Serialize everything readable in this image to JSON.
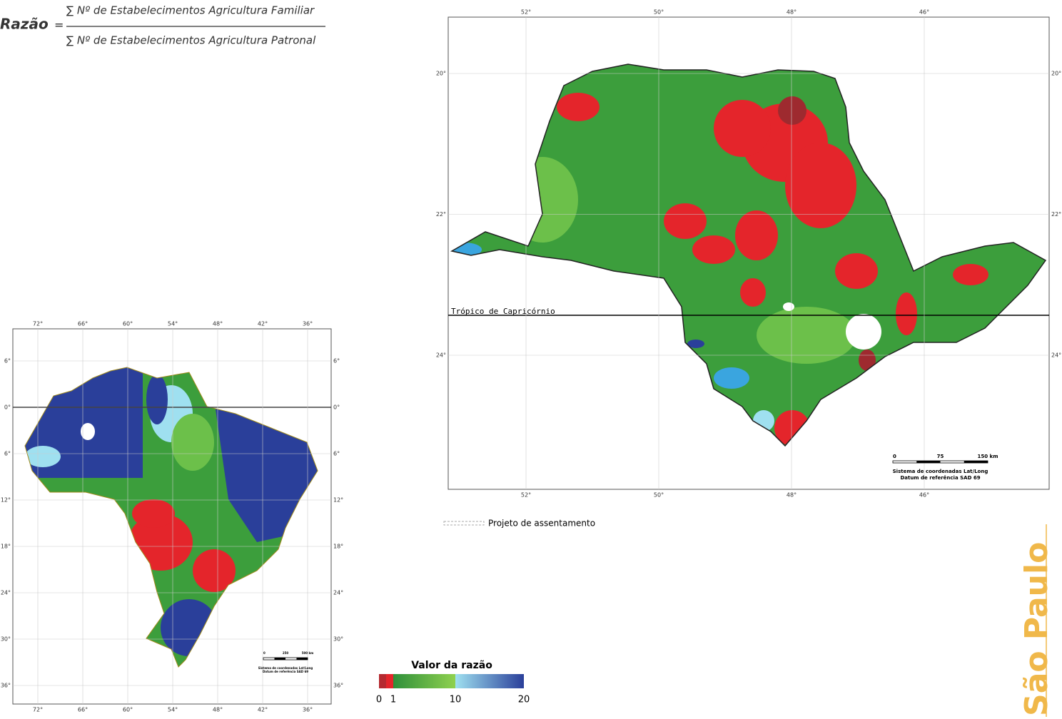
{
  "formula": {
    "lhs": "Razão",
    "equals": "=",
    "numerator": "∑ Nº de Estabelecimentos Agricultura Familiar",
    "denominator": "∑ Nº de Estabelecimentos Agricultura Patronal"
  },
  "sp_map": {
    "lon_labels": [
      "52°",
      "50°",
      "48°",
      "46°"
    ],
    "lat_labels": [
      "20°",
      "22°",
      "24°"
    ],
    "tropic": "Trópico de Capricórnio",
    "scale": {
      "ticks": [
        "0",
        "75",
        "150 km"
      ],
      "crs": "Sistema de coordenadas Lat/Long",
      "datum": "Datum de referência SAD 69"
    },
    "legend": "Projeto de assentamento"
  },
  "brazil_map": {
    "lon_labels": [
      "72°",
      "66°",
      "60°",
      "54°",
      "48°",
      "42°",
      "36°"
    ],
    "lat_labels": [
      "6°",
      "0°",
      "6°",
      "12°",
      "18°",
      "24°",
      "30°",
      "36°"
    ],
    "scale": {
      "ticks": [
        "0",
        "250",
        "500 km"
      ],
      "crs": "Sistema de coordenadas Lat/Long",
      "datum": "Datum de referência SAD 69"
    }
  },
  "colorbar": {
    "title": "Valor da razão",
    "ticks": [
      "0",
      "1",
      "10",
      "20"
    ]
  },
  "side_title": "São Paulo"
}
